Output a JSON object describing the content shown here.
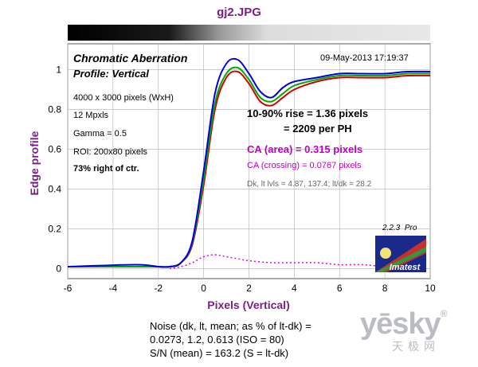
{
  "chart_data": {
    "type": "line",
    "title": "gj2.JPG",
    "xlabel": "Pixels (Vertical)",
    "ylabel": "Edge profile",
    "xlim": [
      -6,
      10
    ],
    "ylim": [
      -0.05,
      1.13
    ],
    "x_ticks": [
      -6,
      -4,
      -2,
      0,
      2,
      4,
      6,
      8,
      10
    ],
    "y_ticks": [
      0,
      0.2,
      0.4,
      0.6,
      0.8,
      1
    ],
    "y_tick_labels": [
      "0",
      "0.2",
      "0.4",
      "0.6",
      "0.8",
      "1"
    ],
    "grid": true,
    "series": [
      {
        "color": "#d40000",
        "x": [
          -6,
          -3,
          -2,
          -1.5,
          -1,
          -0.5,
          0,
          0.5,
          1,
          1.5,
          2,
          2.5,
          3,
          3.5,
          4,
          5,
          6,
          7,
          8,
          9,
          10
        ],
        "y": [
          0.01,
          0.01,
          0.01,
          0.01,
          0.03,
          0.12,
          0.42,
          0.8,
          0.96,
          0.99,
          0.93,
          0.84,
          0.82,
          0.86,
          0.9,
          0.94,
          0.96,
          0.96,
          0.96,
          0.97,
          0.97
        ]
      },
      {
        "color": "#00aa00",
        "x": [
          -6,
          -3,
          -2,
          -1.5,
          -1,
          -0.5,
          0,
          0.5,
          1,
          1.5,
          2,
          2.5,
          3,
          3.5,
          4,
          5,
          6,
          7,
          8,
          9,
          10
        ],
        "y": [
          0.01,
          0.01,
          0.01,
          0.01,
          0.03,
          0.13,
          0.45,
          0.83,
          0.98,
          1.01,
          0.95,
          0.86,
          0.84,
          0.88,
          0.92,
          0.95,
          0.97,
          0.97,
          0.97,
          0.98,
          0.98
        ]
      },
      {
        "color": "#0000e0",
        "x": [
          -6,
          -3,
          -2,
          -1.5,
          -1,
          -0.5,
          0,
          0.5,
          1,
          1.5,
          2,
          2.5,
          3,
          3.5,
          4,
          5,
          6,
          7,
          8,
          9,
          10
        ],
        "y": [
          0.01,
          0.02,
          0.01,
          0.01,
          0.03,
          0.14,
          0.49,
          0.88,
          1.03,
          1.05,
          0.98,
          0.89,
          0.86,
          0.91,
          0.94,
          0.96,
          0.98,
          0.98,
          0.98,
          0.99,
          0.99
        ]
      },
      {
        "color": "#e000e0",
        "dashed": true,
        "x": [
          -1.5,
          -1,
          -0.5,
          0,
          0.5,
          1,
          1.5,
          2,
          3,
          4,
          5,
          6,
          7,
          8,
          9,
          9.5
        ],
        "y": [
          0.0,
          0.01,
          0.03,
          0.06,
          0.07,
          0.06,
          0.05,
          0.04,
          0.03,
          0.03,
          0.03,
          0.02,
          0.02,
          0.01,
          0.0,
          0.0
        ]
      }
    ]
  },
  "panel": {
    "heading": "Chromatic Aberration",
    "profile": "Profile: Vertical",
    "timestamp": "09-May-2013 17:19:37",
    "info_lines": [
      "4000 x 3000 pixels (WxH)",
      "12 Mpxls",
      "Gamma = 0.5",
      "ROI: 200x80 pixels"
    ],
    "position": "73% right of ctr.",
    "rise_line1": "10-90% rise = 1.36 pixels",
    "rise_line2": "= 2209 per PH",
    "ca_area": "CA (area) = 0.315 pixels",
    "ca_crossing": "CA (crossing) = 0.0767 pixels",
    "levels": "Dk, lt lvls = 4.87, 137.4;  lt/dk = 28.2",
    "version": "2.2.3",
    "edition": "Pro",
    "logo_text": "Imatest"
  },
  "noise": {
    "line1": "Noise (dk, lt, mean; as % of lt-dk) =",
    "line2": "0.0273,  1.2,  0.613  (ISO = 80)",
    "line3": "S/N (mean) = 163.2  (S = lt-dk)"
  },
  "watermark": {
    "brand": "yesky",
    "brand_display": "yēsky",
    "suffix": "®",
    "sub": "天极网"
  }
}
